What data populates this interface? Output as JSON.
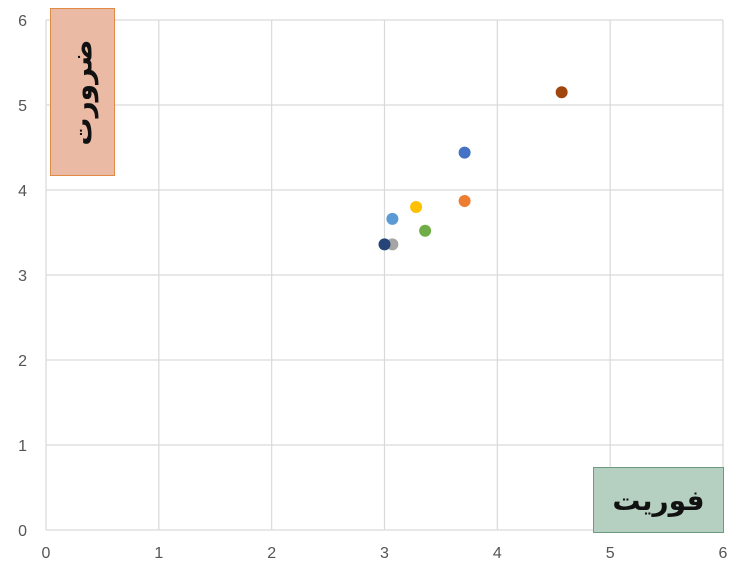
{
  "chart_data": {
    "type": "scatter",
    "xlim": [
      0,
      6
    ],
    "ylim": [
      0,
      6
    ],
    "xticks": [
      "0",
      "1",
      "2",
      "3",
      "4",
      "5",
      "6"
    ],
    "yticks": [
      "0",
      "1",
      "2",
      "3",
      "4",
      "5",
      "6"
    ],
    "grid": true,
    "xlabel": "فوریت",
    "ylabel": "ضرورت",
    "xlabel_box_color": "#b5d0c0",
    "ylabel_box_color": "#ebbaa5",
    "points": [
      {
        "x": 4.57,
        "y": 5.15,
        "color": "#a0450d"
      },
      {
        "x": 3.71,
        "y": 4.44,
        "color": "#4472c4"
      },
      {
        "x": 3.71,
        "y": 3.87,
        "color": "#ed7d31"
      },
      {
        "x": 3.28,
        "y": 3.8,
        "color": "#ffc000"
      },
      {
        "x": 3.07,
        "y": 3.66,
        "color": "#5b9bd5"
      },
      {
        "x": 3.36,
        "y": 3.52,
        "color": "#70ad47"
      },
      {
        "x": 3.07,
        "y": 3.36,
        "color": "#a5a5a5"
      },
      {
        "x": 3.0,
        "y": 3.36,
        "color": "#264478"
      }
    ]
  }
}
